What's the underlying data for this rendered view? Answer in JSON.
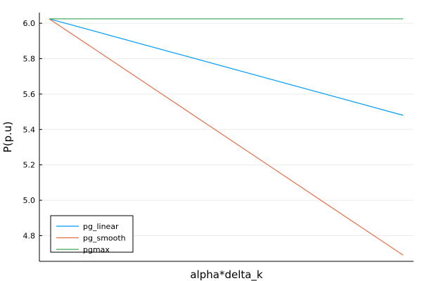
{
  "chart_data": {
    "type": "line",
    "title": "",
    "xlabel": "alpha*delta_k",
    "ylabel": "P(p.u)",
    "x": [
      0,
      1
    ],
    "ylim": [
      4.655,
      6.06
    ],
    "yticks": [
      4.8,
      5.0,
      5.2,
      5.4,
      5.6,
      5.8,
      6.0
    ],
    "ytick_labels": [
      "4.8",
      "5.0",
      "5.2",
      "5.4",
      "5.6",
      "5.8",
      "6.0"
    ],
    "grid": true,
    "legend_position": "bottom-left",
    "series": [
      {
        "name": "pg_linear",
        "color": "#009AFA",
        "values": [
          6.025,
          5.48
        ]
      },
      {
        "name": "pg_smooth",
        "color": "#E36F47",
        "values": [
          6.025,
          4.69
        ]
      },
      {
        "name": "pgmax",
        "color": "#3EA44E",
        "values": [
          6.025,
          6.025
        ]
      }
    ]
  }
}
